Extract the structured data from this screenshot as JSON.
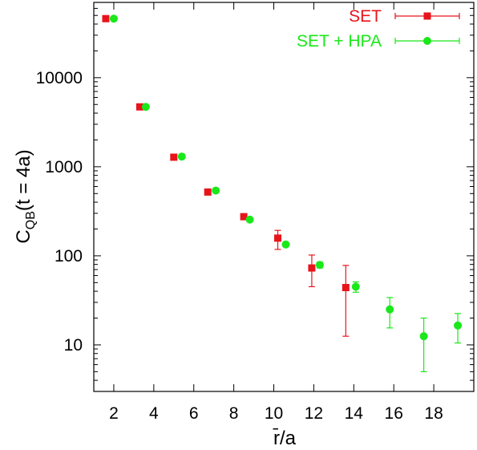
{
  "chart_data": {
    "type": "scatter",
    "title": "",
    "xlabel": "r̄/a",
    "ylabel": {
      "main": "C",
      "subscript": "QB",
      "rest": "(t = 4a)"
    },
    "xlim": [
      1.0,
      20.0
    ],
    "ylim": [
      3,
      70000
    ],
    "y_scale": "log",
    "grid": false,
    "legend_position": "top-right",
    "x_ticks": [
      2,
      4,
      6,
      8,
      10,
      12,
      14,
      16,
      18
    ],
    "y_ticks": [
      10,
      100,
      1000,
      10000
    ],
    "x_tick_labels": [
      "2",
      "4",
      "6",
      "8",
      "10",
      "12",
      "14",
      "16",
      "18"
    ],
    "y_tick_labels": [
      "10",
      "100",
      "1000",
      "10000"
    ],
    "series": [
      {
        "name": "SET",
        "color": "#e8141c",
        "marker": "square",
        "points": [
          {
            "x": 1.6,
            "y": 46000,
            "yerr_low": 45000,
            "yerr_high": 47000
          },
          {
            "x": 3.3,
            "y": 4700,
            "yerr_low": 4600,
            "yerr_high": 4800
          },
          {
            "x": 5.0,
            "y": 1280,
            "yerr_low": 1250,
            "yerr_high": 1310
          },
          {
            "x": 6.7,
            "y": 520,
            "yerr_low": 505,
            "yerr_high": 535
          },
          {
            "x": 8.5,
            "y": 275,
            "yerr_low": 265,
            "yerr_high": 285
          },
          {
            "x": 10.2,
            "y": 158,
            "yerr_low": 118,
            "yerr_high": 193
          },
          {
            "x": 11.9,
            "y": 73,
            "yerr_low": 45,
            "yerr_high": 102
          },
          {
            "x": 13.6,
            "y": 44,
            "yerr_low": 12.5,
            "yerr_high": 78
          }
        ]
      },
      {
        "name": "SET + HPA",
        "color": "#1ae81a",
        "marker": "circle",
        "points": [
          {
            "x": 2.0,
            "y": 46000,
            "yerr_low": 45000,
            "yerr_high": 47000
          },
          {
            "x": 3.6,
            "y": 4700,
            "yerr_low": 4600,
            "yerr_high": 4800
          },
          {
            "x": 5.4,
            "y": 1300,
            "yerr_low": 1270,
            "yerr_high": 1330
          },
          {
            "x": 7.1,
            "y": 540,
            "yerr_low": 525,
            "yerr_high": 555
          },
          {
            "x": 8.8,
            "y": 255,
            "yerr_low": 245,
            "yerr_high": 265
          },
          {
            "x": 10.6,
            "y": 134,
            "yerr_low": 127,
            "yerr_high": 141
          },
          {
            "x": 12.3,
            "y": 79,
            "yerr_low": 73,
            "yerr_high": 85
          },
          {
            "x": 14.1,
            "y": 45,
            "yerr_low": 39,
            "yerr_high": 51
          },
          {
            "x": 15.8,
            "y": 25,
            "yerr_low": 15.5,
            "yerr_high": 34
          },
          {
            "x": 17.5,
            "y": 12.5,
            "yerr_low": 5,
            "yerr_high": 20
          },
          {
            "x": 19.2,
            "y": 16.5,
            "yerr_low": 10.5,
            "yerr_high": 22.5
          }
        ]
      }
    ]
  }
}
